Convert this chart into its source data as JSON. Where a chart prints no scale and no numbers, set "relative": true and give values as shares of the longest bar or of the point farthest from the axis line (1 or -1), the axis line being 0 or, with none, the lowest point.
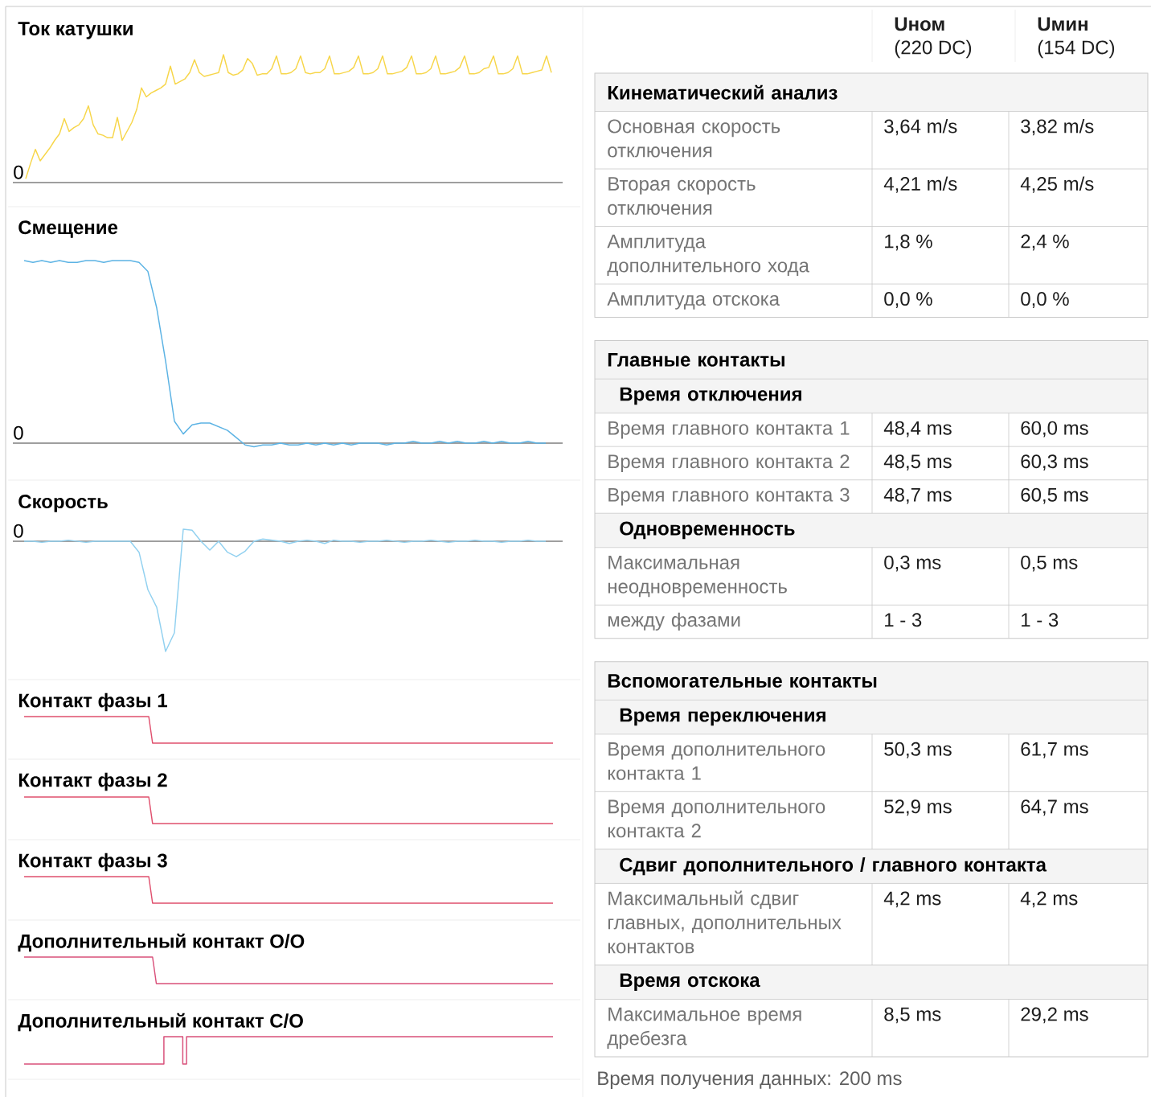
{
  "chart_data": [
    {
      "type": "line",
      "title": "Ток катушки",
      "relative": true,
      "color": "#f7d64a",
      "annotations": [
        "0"
      ],
      "categories": [
        null,
        null,
        null,
        null,
        null,
        null,
        null,
        null,
        null,
        null,
        null,
        null,
        null,
        null,
        null,
        null,
        null,
        null,
        null,
        null,
        null,
        null,
        null,
        null,
        null,
        null,
        null,
        null,
        null,
        null,
        null,
        null,
        null,
        null,
        null,
        null,
        null,
        null,
        null,
        null,
        null,
        null,
        null,
        null,
        null,
        null,
        null,
        null,
        null,
        null,
        null,
        null,
        null,
        null,
        null,
        null,
        null,
        null,
        null,
        null,
        null,
        null,
        null,
        null,
        null,
        null,
        null,
        null,
        null,
        null,
        null,
        null,
        null,
        null,
        null,
        null,
        null,
        null,
        null,
        null,
        null,
        null,
        null,
        null,
        null,
        null,
        null,
        null,
        null,
        null,
        null,
        null,
        null,
        null,
        null,
        null,
        null,
        null,
        null,
        null,
        null,
        null,
        null,
        null,
        null,
        null,
        null,
        null,
        null,
        null
      ],
      "values": [
        0.03,
        0.15,
        0.26,
        0.17,
        0.22,
        0.27,
        0.33,
        0.38,
        0.5,
        0.4,
        0.43,
        0.45,
        0.5,
        0.6,
        0.45,
        0.38,
        0.37,
        0.35,
        0.35,
        0.51,
        0.33,
        0.4,
        0.47,
        0.57,
        0.74,
        0.67,
        0.7,
        0.72,
        0.74,
        0.77,
        0.91,
        0.77,
        0.79,
        0.81,
        0.86,
        0.96,
        0.86,
        0.83,
        0.84,
        0.85,
        0.86,
        1.0,
        0.86,
        0.84,
        0.85,
        0.88,
        0.97,
        0.93,
        0.84,
        0.85,
        0.85,
        0.89,
        0.99,
        0.85,
        0.85,
        0.86,
        0.89,
        0.99,
        0.86,
        0.85,
        0.86,
        0.86,
        0.89,
        0.99,
        0.85,
        0.85,
        0.86,
        0.87,
        0.9,
        0.99,
        0.85,
        0.85,
        0.86,
        0.89,
        0.99,
        0.85,
        0.85,
        0.86,
        0.87,
        0.9,
        0.99,
        0.85,
        0.85,
        0.86,
        0.89,
        0.99,
        0.85,
        0.85,
        0.86,
        0.87,
        0.9,
        0.99,
        0.85,
        0.85,
        0.86,
        0.89,
        0.9,
        0.99,
        0.85,
        0.85,
        0.86,
        0.89,
        0.99,
        0.85,
        0.85,
        0.86,
        0.87,
        0.88,
        0.99,
        0.86
      ]
    },
    {
      "type": "line",
      "title": "Смещение",
      "relative": true,
      "color": "#5cb3e4",
      "annotations": [
        "0"
      ],
      "categories": [
        null,
        null,
        null,
        null,
        null,
        null,
        null,
        null,
        null,
        null,
        null,
        null,
        null,
        null,
        null,
        null,
        null,
        null,
        null,
        null,
        null,
        null,
        null,
        null,
        null,
        null,
        null,
        null,
        null,
        null,
        null,
        null,
        null,
        null,
        null,
        null,
        null,
        null,
        null,
        null,
        null,
        null,
        null,
        null,
        null,
        null,
        null,
        null,
        null,
        null,
        null,
        null,
        null,
        null,
        null,
        null,
        null,
        null,
        null,
        null
      ],
      "values": [
        1.0,
        0.99,
        1.0,
        0.99,
        1.0,
        0.99,
        0.99,
        1.0,
        1.0,
        0.99,
        1.0,
        1.0,
        1.0,
        0.99,
        0.94,
        0.74,
        0.45,
        0.12,
        0.05,
        0.1,
        0.11,
        0.11,
        0.09,
        0.07,
        0.03,
        -0.01,
        -0.02,
        -0.01,
        -0.01,
        0.0,
        -0.01,
        -0.01,
        0.0,
        -0.01,
        0.0,
        -0.01,
        0.0,
        -0.01,
        0.0,
        0.0,
        0.0,
        -0.01,
        0.0,
        0.0,
        0.01,
        0.0,
        0.0,
        0.01,
        0.0,
        0.01,
        0.0,
        0.0,
        0.01,
        0.0,
        0.01,
        0.0,
        0.0,
        0.01,
        0.0,
        0.0
      ]
    },
    {
      "type": "line",
      "title": "Скорость",
      "relative": true,
      "color": "#92d1f0",
      "annotations": [
        "0"
      ],
      "categories": [
        null,
        null,
        null,
        null,
        null,
        null,
        null,
        null,
        null,
        null,
        null,
        null,
        null,
        null,
        null,
        null,
        null,
        null,
        null,
        null,
        null,
        null,
        null,
        null,
        null,
        null,
        null,
        null,
        null,
        null,
        null,
        null,
        null,
        null,
        null,
        null,
        null,
        null,
        null,
        null,
        null,
        null,
        null,
        null,
        null,
        null,
        null,
        null,
        null,
        null,
        null,
        null,
        null,
        null,
        null,
        null,
        null,
        null,
        null,
        null
      ],
      "values": [
        0.0,
        0.0,
        -0.01,
        0.0,
        0.0,
        0.01,
        0.0,
        -0.01,
        0.0,
        0.0,
        0.0,
        0.0,
        0.0,
        -0.1,
        -0.44,
        -0.6,
        -1.0,
        -0.83,
        0.11,
        0.1,
        0.0,
        -0.08,
        0.0,
        -0.1,
        -0.14,
        -0.09,
        0.0,
        0.02,
        0.01,
        0.0,
        -0.02,
        0.0,
        0.01,
        0.0,
        -0.02,
        0.01,
        0.0,
        0.0,
        -0.01,
        0.0,
        0.0,
        0.01,
        0.0,
        -0.01,
        0.0,
        0.0,
        0.01,
        0.0,
        -0.01,
        0.0,
        0.0,
        0.01,
        0.0,
        0.0,
        -0.01,
        0.0,
        0.0,
        0.01,
        0.0,
        0.0
      ]
    },
    {
      "type": "line",
      "title": "Контакт фазы 1",
      "relative": true,
      "color": "#e0506e",
      "categories": [
        null,
        null,
        null,
        null,
        null,
        null,
        null,
        null,
        null,
        null,
        null,
        null,
        null,
        null,
        null,
        null,
        null,
        null,
        null,
        null,
        null,
        null,
        null,
        null,
        null,
        null,
        null,
        null,
        null,
        null,
        null,
        null,
        null,
        null,
        null,
        null,
        null,
        null,
        null,
        null,
        null,
        null,
        null,
        null,
        null,
        null,
        null,
        null,
        null,
        null,
        null,
        null,
        null,
        null,
        null,
        null,
        null,
        null,
        null,
        null,
        null,
        null,
        null,
        null,
        null,
        null,
        null,
        null,
        null,
        null,
        null,
        null,
        null,
        null,
        null,
        null,
        null,
        null,
        null,
        null,
        null,
        null,
        null,
        null,
        null,
        null,
        null,
        null,
        null,
        null,
        null,
        null,
        null,
        null,
        null,
        null,
        null,
        null,
        null,
        null,
        null,
        null,
        null,
        null,
        null,
        null,
        null,
        null,
        null,
        null,
        null,
        null,
        null,
        null,
        null,
        null,
        null,
        null,
        null,
        null,
        null,
        null,
        null,
        null,
        null,
        null,
        null,
        null,
        null,
        null,
        null,
        null,
        null,
        null,
        null,
        null,
        null,
        null,
        null,
        null,
        null
      ],
      "values": [
        1,
        1,
        1,
        1,
        1,
        1,
        1,
        1,
        1,
        1,
        1,
        1,
        1,
        1,
        1,
        1,
        1,
        1,
        1,
        1,
        1,
        1,
        1,
        1,
        1,
        1,
        1,
        1,
        1,
        1,
        1,
        1,
        1,
        1,
        0,
        0,
        0,
        0,
        0,
        0,
        0,
        0,
        0,
        0,
        0,
        0,
        0,
        0,
        0,
        0,
        0,
        0,
        0,
        0,
        0,
        0,
        0,
        0,
        0,
        0,
        0,
        0,
        0,
        0,
        0,
        0,
        0,
        0,
        0,
        0,
        0,
        0,
        0,
        0,
        0,
        0,
        0,
        0,
        0,
        0,
        0,
        0,
        0,
        0,
        0,
        0,
        0,
        0,
        0,
        0,
        0,
        0,
        0,
        0,
        0,
        0,
        0,
        0,
        0,
        0,
        0,
        0,
        0,
        0,
        0,
        0,
        0,
        0,
        0,
        0,
        0,
        0,
        0,
        0,
        0,
        0,
        0,
        0,
        0,
        0,
        0,
        0,
        0,
        0,
        0,
        0,
        0,
        0,
        0,
        0,
        0,
        0,
        0,
        0,
        0,
        0,
        0,
        0,
        0,
        0,
        0
      ]
    },
    {
      "type": "line",
      "title": "Контакт фазы 2",
      "relative": true,
      "color": "#e0506e",
      "categories": [
        null,
        null,
        null,
        null,
        null,
        null,
        null,
        null,
        null,
        null,
        null,
        null,
        null,
        null,
        null,
        null,
        null,
        null,
        null,
        null,
        null,
        null,
        null,
        null,
        null,
        null,
        null,
        null,
        null,
        null,
        null,
        null,
        null,
        null,
        null,
        null,
        null,
        null,
        null,
        null,
        null,
        null,
        null,
        null,
        null,
        null,
        null,
        null,
        null,
        null,
        null,
        null,
        null,
        null,
        null,
        null,
        null,
        null,
        null,
        null,
        null,
        null,
        null,
        null,
        null,
        null,
        null,
        null,
        null,
        null,
        null,
        null,
        null,
        null,
        null,
        null,
        null,
        null,
        null,
        null,
        null,
        null,
        null,
        null,
        null,
        null,
        null,
        null,
        null,
        null,
        null,
        null,
        null,
        null,
        null,
        null,
        null,
        null,
        null,
        null,
        null,
        null,
        null,
        null,
        null,
        null,
        null,
        null,
        null,
        null,
        null,
        null,
        null,
        null,
        null,
        null,
        null,
        null,
        null,
        null,
        null,
        null,
        null,
        null,
        null,
        null,
        null,
        null,
        null,
        null,
        null,
        null,
        null,
        null,
        null,
        null,
        null,
        null,
        null,
        null,
        null
      ],
      "values": [
        1,
        1,
        1,
        1,
        1,
        1,
        1,
        1,
        1,
        1,
        1,
        1,
        1,
        1,
        1,
        1,
        1,
        1,
        1,
        1,
        1,
        1,
        1,
        1,
        1,
        1,
        1,
        1,
        1,
        1,
        1,
        1,
        1,
        1,
        0,
        0,
        0,
        0,
        0,
        0,
        0,
        0,
        0,
        0,
        0,
        0,
        0,
        0,
        0,
        0,
        0,
        0,
        0,
        0,
        0,
        0,
        0,
        0,
        0,
        0,
        0,
        0,
        0,
        0,
        0,
        0,
        0,
        0,
        0,
        0,
        0,
        0,
        0,
        0,
        0,
        0,
        0,
        0,
        0,
        0,
        0,
        0,
        0,
        0,
        0,
        0,
        0,
        0,
        0,
        0,
        0,
        0,
        0,
        0,
        0,
        0,
        0,
        0,
        0,
        0,
        0,
        0,
        0,
        0,
        0,
        0,
        0,
        0,
        0,
        0,
        0,
        0,
        0,
        0,
        0,
        0,
        0,
        0,
        0,
        0,
        0,
        0,
        0,
        0,
        0,
        0,
        0,
        0,
        0,
        0,
        0,
        0,
        0,
        0,
        0,
        0,
        0,
        0,
        0,
        0,
        0
      ]
    },
    {
      "type": "line",
      "title": "Контакт фазы 3",
      "relative": true,
      "color": "#e0506e",
      "categories": [
        null,
        null,
        null,
        null,
        null,
        null,
        null,
        null,
        null,
        null,
        null,
        null,
        null,
        null,
        null,
        null,
        null,
        null,
        null,
        null,
        null,
        null,
        null,
        null,
        null,
        null,
        null,
        null,
        null,
        null,
        null,
        null,
        null,
        null,
        null,
        null,
        null,
        null,
        null,
        null,
        null,
        null,
        null,
        null,
        null,
        null,
        null,
        null,
        null,
        null,
        null,
        null,
        null,
        null,
        null,
        null,
        null,
        null,
        null,
        null,
        null,
        null,
        null,
        null,
        null,
        null,
        null,
        null,
        null,
        null,
        null,
        null,
        null,
        null,
        null,
        null,
        null,
        null,
        null,
        null,
        null,
        null,
        null,
        null,
        null,
        null,
        null,
        null,
        null,
        null,
        null,
        null,
        null,
        null,
        null,
        null,
        null,
        null,
        null,
        null,
        null,
        null,
        null,
        null,
        null,
        null,
        null,
        null,
        null,
        null,
        null,
        null,
        null,
        null,
        null,
        null,
        null,
        null,
        null,
        null,
        null,
        null,
        null,
        null,
        null,
        null,
        null,
        null,
        null,
        null,
        null,
        null,
        null,
        null,
        null,
        null,
        null,
        null,
        null,
        null,
        null
      ],
      "values": [
        1,
        1,
        1,
        1,
        1,
        1,
        1,
        1,
        1,
        1,
        1,
        1,
        1,
        1,
        1,
        1,
        1,
        1,
        1,
        1,
        1,
        1,
        1,
        1,
        1,
        1,
        1,
        1,
        1,
        1,
        1,
        1,
        1,
        1,
        0,
        0,
        0,
        0,
        0,
        0,
        0,
        0,
        0,
        0,
        0,
        0,
        0,
        0,
        0,
        0,
        0,
        0,
        0,
        0,
        0,
        0,
        0,
        0,
        0,
        0,
        0,
        0,
        0,
        0,
        0,
        0,
        0,
        0,
        0,
        0,
        0,
        0,
        0,
        0,
        0,
        0,
        0,
        0,
        0,
        0,
        0,
        0,
        0,
        0,
        0,
        0,
        0,
        0,
        0,
        0,
        0,
        0,
        0,
        0,
        0,
        0,
        0,
        0,
        0,
        0,
        0,
        0,
        0,
        0,
        0,
        0,
        0,
        0,
        0,
        0,
        0,
        0,
        0,
        0,
        0,
        0,
        0,
        0,
        0,
        0,
        0,
        0,
        0,
        0,
        0,
        0,
        0,
        0,
        0,
        0,
        0,
        0,
        0,
        0,
        0,
        0,
        0,
        0,
        0,
        0,
        0
      ]
    },
    {
      "type": "line",
      "title": "Дополнительный контакт O/O",
      "relative": true,
      "color": "#d9507a",
      "categories": [
        null,
        null,
        null,
        null,
        null,
        null,
        null,
        null,
        null,
        null,
        null,
        null,
        null,
        null,
        null,
        null,
        null,
        null,
        null,
        null,
        null,
        null,
        null,
        null,
        null,
        null,
        null,
        null,
        null,
        null,
        null,
        null,
        null,
        null,
        null,
        null,
        null,
        null,
        null,
        null,
        null,
        null,
        null,
        null,
        null,
        null,
        null,
        null,
        null,
        null,
        null,
        null,
        null,
        null,
        null,
        null,
        null,
        null,
        null,
        null,
        null,
        null,
        null,
        null,
        null,
        null,
        null,
        null,
        null,
        null,
        null,
        null,
        null,
        null,
        null,
        null,
        null,
        null,
        null,
        null,
        null,
        null,
        null,
        null,
        null,
        null,
        null,
        null,
        null,
        null,
        null,
        null,
        null,
        null,
        null,
        null,
        null,
        null,
        null,
        null,
        null,
        null,
        null,
        null,
        null,
        null,
        null,
        null,
        null,
        null,
        null,
        null,
        null,
        null,
        null,
        null,
        null,
        null,
        null,
        null,
        null,
        null,
        null,
        null,
        null,
        null,
        null,
        null,
        null,
        null,
        null,
        null,
        null,
        null,
        null,
        null,
        null,
        null,
        null,
        null,
        null
      ],
      "values": [
        1,
        1,
        1,
        1,
        1,
        1,
        1,
        1,
        1,
        1,
        1,
        1,
        1,
        1,
        1,
        1,
        1,
        1,
        1,
        1,
        1,
        1,
        1,
        1,
        1,
        1,
        1,
        1,
        1,
        1,
        1,
        1,
        1,
        1,
        1,
        0,
        0,
        0,
        0,
        0,
        0,
        0,
        0,
        0,
        0,
        0,
        0,
        0,
        0,
        0,
        0,
        0,
        0,
        0,
        0,
        0,
        0,
        0,
        0,
        0,
        0,
        0,
        0,
        0,
        0,
        0,
        0,
        0,
        0,
        0,
        0,
        0,
        0,
        0,
        0,
        0,
        0,
        0,
        0,
        0,
        0,
        0,
        0,
        0,
        0,
        0,
        0,
        0,
        0,
        0,
        0,
        0,
        0,
        0,
        0,
        0,
        0,
        0,
        0,
        0,
        0,
        0,
        0,
        0,
        0,
        0,
        0,
        0,
        0,
        0,
        0,
        0,
        0,
        0,
        0,
        0,
        0,
        0,
        0,
        0,
        0,
        0,
        0,
        0,
        0,
        0,
        0,
        0,
        0,
        0,
        0,
        0,
        0,
        0,
        0,
        0,
        0,
        0,
        0,
        0,
        0
      ]
    },
    {
      "type": "step",
      "title": "Дополнительный контакт C/O",
      "relative": true,
      "color": "#d9507a",
      "categories": [
        null,
        null,
        null,
        null,
        null,
        null,
        null,
        null,
        null,
        null,
        null,
        null,
        null,
        null,
        null,
        null,
        null,
        null,
        null,
        null,
        null,
        null,
        null,
        null,
        null,
        null,
        null,
        null,
        null,
        null,
        null,
        null,
        null,
        null,
        null,
        null,
        null,
        null,
        null,
        null,
        null,
        null,
        null,
        null,
        null,
        null,
        null,
        null,
        null,
        null,
        null,
        null,
        null,
        null,
        null,
        null,
        null,
        null,
        null,
        null,
        null,
        null,
        null,
        null,
        null,
        null,
        null,
        null,
        null,
        null,
        null,
        null,
        null,
        null,
        null,
        null,
        null,
        null,
        null,
        null,
        null,
        null,
        null,
        null,
        null,
        null,
        null,
        null,
        null,
        null,
        null,
        null,
        null,
        null,
        null,
        null,
        null,
        null,
        null,
        null,
        null,
        null,
        null,
        null,
        null,
        null,
        null,
        null,
        null,
        null,
        null,
        null,
        null,
        null,
        null,
        null,
        null,
        null,
        null,
        null,
        null,
        null,
        null,
        null,
        null,
        null,
        null,
        null,
        null,
        null,
        null,
        null,
        null,
        null,
        null,
        null,
        null,
        null,
        null,
        null,
        null
      ],
      "values": [
        0,
        0,
        0,
        0,
        0,
        0,
        0,
        0,
        0,
        0,
        0,
        0,
        0,
        0,
        0,
        0,
        0,
        0,
        0,
        0,
        0,
        0,
        0,
        0,
        0,
        0,
        0,
        0,
        0,
        0,
        0,
        0,
        0,
        0,
        0,
        0,
        0,
        1,
        1,
        1,
        1,
        1,
        0,
        1,
        1,
        1,
        1,
        1,
        1,
        1,
        1,
        1,
        1,
        1,
        1,
        1,
        1,
        1,
        1,
        1,
        1,
        1,
        1,
        1,
        1,
        1,
        1,
        1,
        1,
        1,
        1,
        1,
        1,
        1,
        1,
        1,
        1,
        1,
        1,
        1,
        1,
        1,
        1,
        1,
        1,
        1,
        1,
        1,
        1,
        1,
        1,
        1,
        1,
        1,
        1,
        1,
        1,
        1,
        1,
        1,
        1,
        1,
        1,
        1,
        1,
        1,
        1,
        1,
        1,
        1,
        1,
        1,
        1,
        1,
        1,
        1,
        1,
        1,
        1,
        1,
        1,
        1,
        1,
        1,
        1,
        1,
        1,
        1,
        1,
        1,
        1,
        1,
        1,
        1,
        1,
        1,
        1,
        1,
        1,
        1,
        1
      ]
    },
    {
      "type": "other",
      "annotations": [
        "Uном",
        "(220 DC)",
        "Uмин",
        "(154 DC)",
        "Кинематический анализ",
        "Основная скорость отключения",
        "3,64 m/s",
        "3,82 m/s",
        "Вторая скорость отключения",
        "4,21 m/s",
        "4,25 m/s",
        "Амплитуда дополнительного хода",
        "1,8 %",
        "2,4 %",
        "Амплитуда отскока",
        "0,0 %",
        "0,0 %",
        "Главные контакты",
        "Время отключения",
        "Время главного контакта 1",
        "48,4 ms",
        "60,0 ms",
        "Время главного контакта 2",
        "48,5 ms",
        "60,3 ms",
        "Время главного контакта 3",
        "48,7 ms",
        "60,5 ms",
        "Одновременность",
        "Максимальная неодновременность",
        "0,3 ms",
        "0,5 ms",
        "между фазами",
        "1 - 3",
        "1 - 3",
        "Вспомогательные контакты",
        "Время переключения",
        "Время дополнительного контакта 1",
        "50,3 ms",
        "61,7 ms",
        "Время дополнительного контакта 2",
        "52,9 ms",
        "64,7 ms",
        "Сдвиг дополнительного / главного контакта",
        "Максимальный сдвиг главных, дополнительных контактов",
        "4,2 ms",
        "4,2 ms",
        "Время отскока",
        "Максимальное время дребезга",
        "8,5 ms",
        "29,2 ms",
        "Время получения данных: 200 ms"
      ]
    }
  ]
}
